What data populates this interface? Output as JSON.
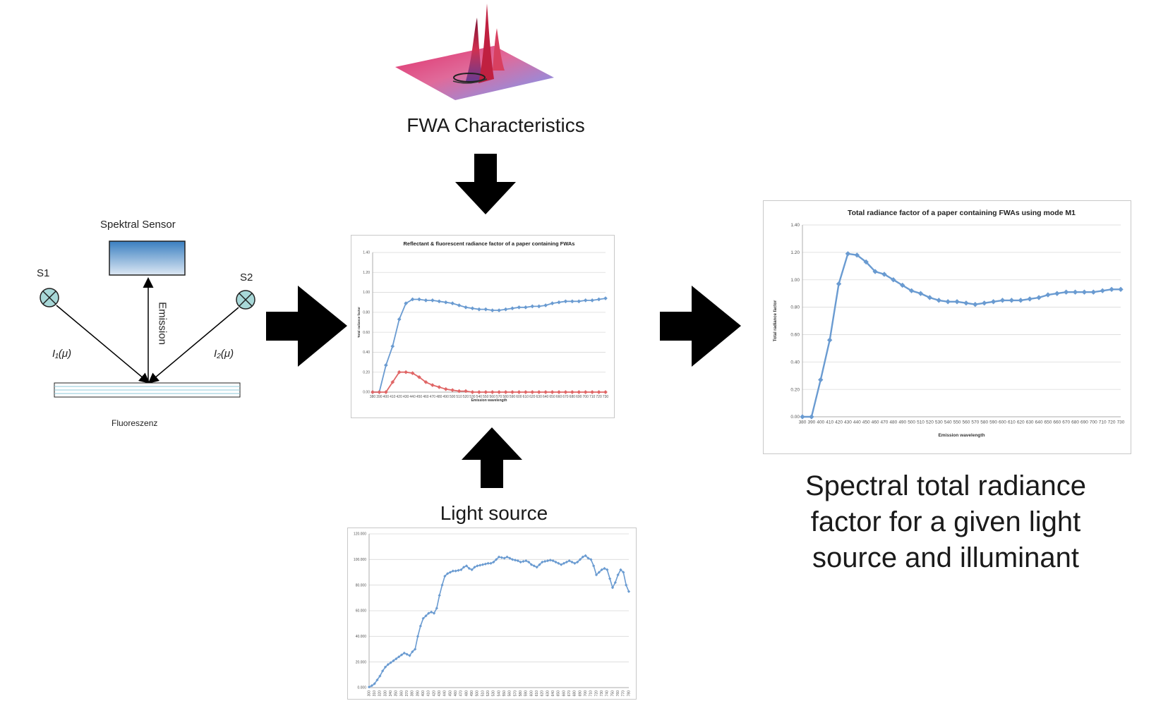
{
  "labels": {
    "fwa": "FWA Characteristics",
    "light_source": "Light source",
    "result_line1": "Spectral total radiance",
    "result_line2": "factor for a given light",
    "result_line3": "source and illuminant"
  },
  "setup": {
    "sensor": "Spektral Sensor",
    "s1": "S1",
    "s2": "S2",
    "emission": "Emission",
    "i1": "I₁(μ)",
    "i2": "I₂(μ)",
    "sample": "Fluoreszenz"
  },
  "chart_data": [
    {
      "id": "center",
      "type": "line",
      "title": "Reflectant & fluorescent radiance factor of a paper containing FWAs",
      "xlabel": "Emission wavelength",
      "ylabel": "Total radiance factor",
      "ylim": [
        0,
        1.4
      ],
      "yticks": [
        "0.00",
        "0.20",
        "0.40",
        "0.60",
        "0.80",
        "1.00",
        "1.20",
        "1.40"
      ],
      "grid": true,
      "x": [
        380,
        390,
        400,
        410,
        420,
        430,
        440,
        450,
        460,
        470,
        480,
        490,
        500,
        510,
        520,
        530,
        540,
        550,
        560,
        570,
        580,
        590,
        600,
        610,
        620,
        630,
        640,
        650,
        660,
        670,
        680,
        690,
        700,
        710,
        720,
        730
      ],
      "series": [
        {
          "color": "#6a9bd1",
          "values": [
            0.0,
            0.0,
            0.27,
            0.46,
            0.73,
            0.89,
            0.93,
            0.93,
            0.92,
            0.92,
            0.91,
            0.9,
            0.89,
            0.87,
            0.85,
            0.84,
            0.83,
            0.83,
            0.82,
            0.82,
            0.83,
            0.84,
            0.85,
            0.85,
            0.86,
            0.86,
            0.87,
            0.89,
            0.9,
            0.91,
            0.91,
            0.91,
            0.92,
            0.92,
            0.93,
            0.94
          ]
        },
        {
          "color": "#e06666",
          "values": [
            0.0,
            0.0,
            0.0,
            0.1,
            0.2,
            0.2,
            0.19,
            0.15,
            0.1,
            0.07,
            0.05,
            0.03,
            0.02,
            0.01,
            0.01,
            0.0,
            0.0,
            0.0,
            0.0,
            0.0,
            0.0,
            0.0,
            0.0,
            0.0,
            0.0,
            0.0,
            0.0,
            0.0,
            0.0,
            0.0,
            0.0,
            0.0,
            0.0,
            0.0,
            0.0,
            0.0
          ]
        }
      ]
    },
    {
      "id": "right",
      "type": "line",
      "title": "Total radiance factor of a paper containing FWAs using mode M1",
      "xlabel": "Emission wavelength",
      "ylabel": "Total radiance factor",
      "ylim": [
        0,
        1.4
      ],
      "yticks": [
        "0.00",
        "0.20",
        "0.40",
        "0.60",
        "0.80",
        "1.00",
        "1.20",
        "1.40"
      ],
      "grid": true,
      "x": [
        380,
        390,
        400,
        410,
        420,
        430,
        440,
        450,
        460,
        470,
        480,
        490,
        500,
        510,
        520,
        530,
        540,
        550,
        560,
        570,
        580,
        590,
        600,
        610,
        620,
        630,
        640,
        650,
        660,
        670,
        680,
        690,
        700,
        710,
        720,
        730
      ],
      "series": [
        {
          "color": "#6a9bd1",
          "values": [
            0.0,
            0.0,
            0.27,
            0.56,
            0.97,
            1.19,
            1.18,
            1.13,
            1.06,
            1.04,
            1.0,
            0.96,
            0.92,
            0.9,
            0.87,
            0.85,
            0.84,
            0.84,
            0.83,
            0.82,
            0.83,
            0.84,
            0.85,
            0.85,
            0.85,
            0.86,
            0.87,
            0.89,
            0.9,
            0.91,
            0.91,
            0.91,
            0.91,
            0.92,
            0.93,
            0.93
          ]
        }
      ]
    },
    {
      "id": "bottom",
      "type": "line",
      "ylim": [
        0,
        120
      ],
      "yticks": [
        "0.000",
        "20.000",
        "40.000",
        "60.000",
        "80.000",
        "100.000",
        "120.000"
      ],
      "grid": true,
      "x": [
        300,
        305,
        310,
        315,
        320,
        325,
        330,
        335,
        340,
        345,
        350,
        355,
        360,
        365,
        370,
        375,
        380,
        385,
        390,
        395,
        400,
        405,
        410,
        415,
        420,
        425,
        430,
        435,
        440,
        445,
        450,
        455,
        460,
        465,
        470,
        475,
        480,
        485,
        490,
        495,
        500,
        505,
        510,
        515,
        520,
        525,
        530,
        535,
        540,
        545,
        550,
        555,
        560,
        565,
        570,
        575,
        580,
        585,
        590,
        595,
        600,
        605,
        610,
        615,
        620,
        625,
        630,
        635,
        640,
        645,
        650,
        655,
        660,
        665,
        670,
        675,
        680,
        685,
        690,
        695,
        700,
        705,
        710,
        715,
        720,
        725,
        730,
        735,
        740,
        745,
        750,
        755,
        760,
        765,
        770,
        775,
        780
      ],
      "series": [
        {
          "color": "#6a9bd1",
          "values": [
            0.5,
            1.5,
            3,
            6,
            9,
            13,
            16,
            18,
            19.5,
            21,
            22.5,
            24,
            25.5,
            27,
            26,
            25,
            28,
            30,
            40,
            48,
            54,
            56,
            58,
            59,
            58,
            62,
            72,
            80,
            87,
            89,
            90,
            91,
            91,
            91.5,
            92,
            94,
            95,
            93,
            92,
            94,
            95,
            95.5,
            96,
            96.5,
            97,
            97,
            98,
            100,
            102,
            101.5,
            101,
            102,
            101,
            100,
            99.5,
            99,
            98,
            98.5,
            99,
            98,
            96,
            95,
            94,
            96,
            98,
            98.5,
            99,
            99.5,
            99,
            98,
            97,
            96,
            97,
            98,
            99,
            98,
            97,
            98,
            100,
            102,
            103,
            101,
            100,
            95,
            88,
            90,
            92,
            93,
            92,
            85,
            78,
            82,
            88,
            92,
            90,
            80,
            75
          ]
        }
      ]
    }
  ]
}
